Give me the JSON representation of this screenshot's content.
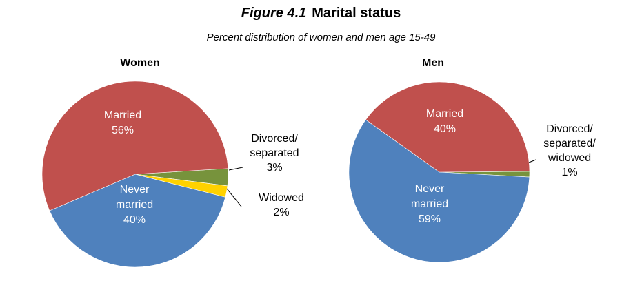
{
  "header": {
    "figure_number": "Figure 4.1",
    "title": "Marital status",
    "subtitle": "Percent distribution of women and men age 15-49"
  },
  "colors": {
    "married": "#C0504D",
    "never_married": "#4F81BD",
    "divorced_separated": "#77933C",
    "widowed": "#FFD200",
    "divorced_separated_widowed": "#77933C"
  },
  "chart_data": [
    {
      "type": "pie",
      "title": "Women",
      "slices": [
        {
          "key": "divorced",
          "label_lines": [
            "Divorced/",
            "separated"
          ],
          "value_label": "3%",
          "value": 3,
          "color": "#77933C",
          "label_position": "outside"
        },
        {
          "key": "widowed",
          "label_lines": [
            "Widowed"
          ],
          "value_label": "2%",
          "value": 2,
          "color": "#FFD200",
          "label_position": "outside"
        },
        {
          "key": "never_married",
          "label_lines": [
            "Never",
            "married"
          ],
          "value_label": "40%",
          "value": 40,
          "color": "#4F81BD",
          "label_position": "inside"
        },
        {
          "key": "married",
          "label_lines": [
            "Married"
          ],
          "value_label": "56%",
          "value": 56,
          "color": "#C0504D",
          "label_position": "inside"
        }
      ]
    },
    {
      "type": "pie",
      "title": "Men",
      "slices": [
        {
          "key": "divorced_widowed",
          "label_lines": [
            "Divorced/",
            "separated/",
            "widowed"
          ],
          "value_label": "1%",
          "value": 1,
          "color": "#77933C",
          "label_position": "outside"
        },
        {
          "key": "never_married",
          "label_lines": [
            "Never",
            "married"
          ],
          "value_label": "59%",
          "value": 59,
          "color": "#4F81BD",
          "label_position": "inside"
        },
        {
          "key": "married",
          "label_lines": [
            "Married"
          ],
          "value_label": "40%",
          "value": 40,
          "color": "#C0504D",
          "label_position": "inside"
        }
      ]
    }
  ]
}
